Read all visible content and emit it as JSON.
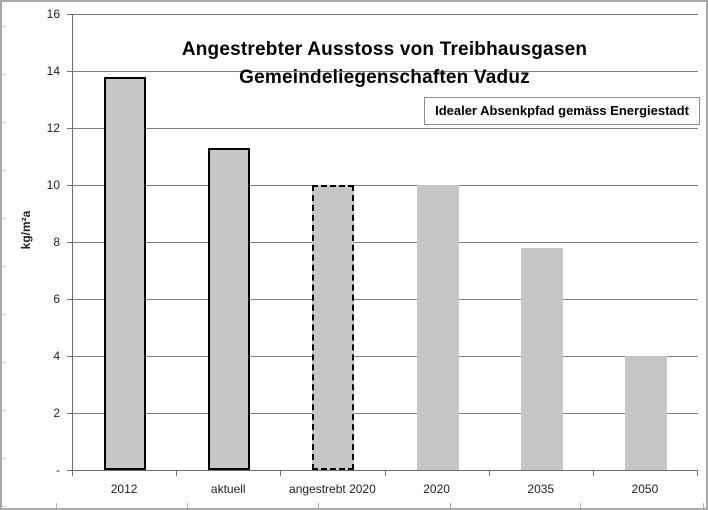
{
  "chart_data": {
    "type": "bar",
    "title_line1": "Angestrebter Ausstoss von Treibhausgasen",
    "title_line2": "Gemeindeliegenschaften Vaduz",
    "annotation": "Idealer Absenkpfad gemäss Energiestadt",
    "ylabel": "kg/m²a",
    "xlabel": "",
    "categories": [
      "2012",
      "aktuell",
      "angestrebt 2020",
      "2020",
      "2035",
      "2050"
    ],
    "values": [
      13.8,
      11.3,
      10.0,
      10.0,
      7.8,
      4.0
    ],
    "bar_styles": [
      "solid",
      "solid",
      "dashed",
      "none",
      "none",
      "none"
    ],
    "ylim": [
      0,
      16
    ],
    "y_tick_step": 2,
    "y_tick_labels": [
      "-",
      "2",
      "4",
      "6",
      "8",
      "10",
      "12",
      "14",
      "16"
    ],
    "grid": true,
    "legend": "none",
    "colors": {
      "bar_fill": "#c6c6c6",
      "bar_border": "#000000",
      "gridline": "#7f7f7f",
      "axis": "#6e6e6e",
      "frame_border": "#a9a9a9",
      "text": "#1f1f1f"
    }
  }
}
